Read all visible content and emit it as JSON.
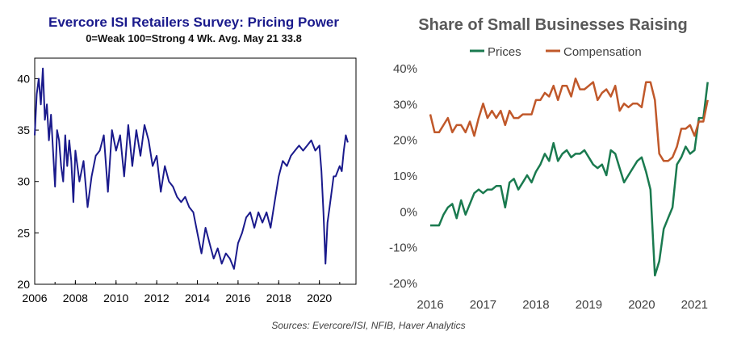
{
  "sources": "Sources: Evercore/ISI, NFIB, Haver Analytics",
  "colors": {
    "retailers_line": "#1a1a8c",
    "prices": "#1a7a4f",
    "compensation": "#c0582a"
  },
  "chart_data": [
    {
      "type": "line",
      "title": "Evercore ISI Retailers Survey: Pricing Power",
      "subtitle": "0=Weak  100=Strong  4 Wk. Avg.  May 21 33.8",
      "xlabel": "",
      "ylabel": "",
      "xlim": [
        2006,
        2021.8
      ],
      "ylim": [
        20,
        42
      ],
      "xticks": [
        "2006",
        "2008",
        "2010",
        "2012",
        "2014",
        "2016",
        "2018",
        "2020"
      ],
      "yticks": [
        "20",
        "25",
        "30",
        "35",
        "40"
      ],
      "grid": false,
      "series": [
        {
          "name": "",
          "x": [
            2006.0,
            2006.1,
            2006.2,
            2006.3,
            2006.4,
            2006.5,
            2006.6,
            2006.7,
            2006.8,
            2006.9,
            2007.0,
            2007.1,
            2007.2,
            2007.3,
            2007.4,
            2007.5,
            2007.6,
            2007.7,
            2007.8,
            2007.9,
            2008.0,
            2008.2,
            2008.4,
            2008.6,
            2008.8,
            2009.0,
            2009.2,
            2009.4,
            2009.6,
            2009.8,
            2010.0,
            2010.2,
            2010.4,
            2010.6,
            2010.8,
            2011.0,
            2011.2,
            2011.4,
            2011.6,
            2011.8,
            2012.0,
            2012.2,
            2012.4,
            2012.6,
            2012.8,
            2013.0,
            2013.2,
            2013.4,
            2013.6,
            2013.8,
            2014.0,
            2014.2,
            2014.4,
            2014.6,
            2014.8,
            2015.0,
            2015.2,
            2015.4,
            2015.6,
            2015.8,
            2016.0,
            2016.2,
            2016.4,
            2016.6,
            2016.8,
            2017.0,
            2017.2,
            2017.4,
            2017.6,
            2017.8,
            2018.0,
            2018.2,
            2018.4,
            2018.6,
            2018.8,
            2019.0,
            2019.2,
            2019.4,
            2019.6,
            2019.8,
            2020.0,
            2020.1,
            2020.2,
            2020.3,
            2020.4,
            2020.5,
            2020.6,
            2020.7,
            2020.8,
            2020.9,
            2021.0,
            2021.1,
            2021.2,
            2021.3,
            2021.4
          ],
          "y": [
            34.5,
            38.5,
            40.0,
            37.5,
            41.0,
            36.0,
            37.5,
            34.0,
            36.5,
            33.0,
            29.5,
            35.0,
            34.0,
            31.5,
            30.0,
            34.5,
            31.5,
            34.0,
            32.0,
            28.0,
            33.0,
            30.0,
            32.0,
            27.5,
            30.5,
            32.5,
            33.0,
            34.5,
            29.0,
            35.0,
            33.0,
            34.5,
            30.5,
            35.5,
            31.5,
            35.0,
            32.5,
            35.5,
            34.0,
            31.5,
            32.5,
            29.0,
            31.5,
            30.0,
            29.5,
            28.5,
            28.0,
            28.5,
            27.5,
            27.0,
            25.0,
            23.0,
            25.5,
            24.0,
            22.5,
            23.5,
            22.0,
            23.0,
            22.5,
            21.5,
            24.0,
            25.0,
            26.5,
            27.0,
            25.5,
            27.0,
            26.0,
            27.0,
            25.5,
            28.0,
            30.5,
            32.0,
            31.5,
            32.5,
            33.0,
            33.5,
            33.0,
            33.5,
            34.0,
            33.0,
            33.5,
            31.0,
            27.0,
            22.0,
            26.0,
            27.5,
            29.0,
            30.5,
            30.5,
            31.0,
            31.5,
            31.0,
            33.0,
            34.5,
            33.8
          ]
        }
      ]
    },
    {
      "type": "line",
      "title": "Share of Small Businesses Raising",
      "xlabel": "",
      "ylabel": "",
      "xlim": [
        2016,
        2021.3
      ],
      "ylim": [
        -20,
        40
      ],
      "xticks": [
        "2016",
        "2017",
        "2018",
        "2019",
        "2020",
        "2021"
      ],
      "yticks": [
        "-20%",
        "-10%",
        "0%",
        "10%",
        "20%",
        "30%",
        "40%"
      ],
      "legend": "top",
      "grid": false,
      "series": [
        {
          "name": "Prices",
          "x": [
            2016.0,
            2016.083,
            2016.167,
            2016.25,
            2016.333,
            2016.417,
            2016.5,
            2016.583,
            2016.667,
            2016.75,
            2016.833,
            2016.917,
            2017.0,
            2017.083,
            2017.167,
            2017.25,
            2017.333,
            2017.417,
            2017.5,
            2017.583,
            2017.667,
            2017.75,
            2017.833,
            2017.917,
            2018.0,
            2018.083,
            2018.167,
            2018.25,
            2018.333,
            2018.417,
            2018.5,
            2018.583,
            2018.667,
            2018.75,
            2018.833,
            2018.917,
            2019.0,
            2019.083,
            2019.167,
            2019.25,
            2019.333,
            2019.417,
            2019.5,
            2019.583,
            2019.667,
            2019.75,
            2019.833,
            2019.917,
            2020.0,
            2020.083,
            2020.167,
            2020.25,
            2020.333,
            2020.417,
            2020.5,
            2020.583,
            2020.667,
            2020.75,
            2020.833,
            2020.917,
            2021.0,
            2021.083,
            2021.167,
            2021.25
          ],
          "values": [
            -4,
            -4,
            -4,
            -1,
            1,
            2,
            -2,
            3,
            -1,
            2,
            5,
            6,
            5,
            6,
            6,
            7,
            7,
            1,
            8,
            9,
            6,
            8,
            10,
            8,
            11,
            13,
            16,
            14,
            19,
            14,
            16,
            17,
            15,
            16,
            16,
            17,
            15,
            13,
            12,
            13,
            10,
            17,
            16,
            12,
            8,
            10,
            12,
            14,
            15,
            11,
            6,
            -18,
            -14,
            -5,
            -2,
            1,
            13,
            15,
            18,
            16,
            17,
            26,
            26,
            36
          ]
        },
        {
          "name": "Compensation",
          "x": [
            2016.0,
            2016.083,
            2016.167,
            2016.25,
            2016.333,
            2016.417,
            2016.5,
            2016.583,
            2016.667,
            2016.75,
            2016.833,
            2016.917,
            2017.0,
            2017.083,
            2017.167,
            2017.25,
            2017.333,
            2017.417,
            2017.5,
            2017.583,
            2017.667,
            2017.75,
            2017.833,
            2017.917,
            2018.0,
            2018.083,
            2018.167,
            2018.25,
            2018.333,
            2018.417,
            2018.5,
            2018.583,
            2018.667,
            2018.75,
            2018.833,
            2018.917,
            2019.0,
            2019.083,
            2019.167,
            2019.25,
            2019.333,
            2019.417,
            2019.5,
            2019.583,
            2019.667,
            2019.75,
            2019.833,
            2019.917,
            2020.0,
            2020.083,
            2020.167,
            2020.25,
            2020.333,
            2020.417,
            2020.5,
            2020.583,
            2020.667,
            2020.75,
            2020.833,
            2020.917,
            2021.0,
            2021.083,
            2021.167,
            2021.25
          ],
          "values": [
            27,
            22,
            22,
            24,
            26,
            22,
            24,
            24,
            22,
            25,
            21,
            26,
            30,
            26,
            28,
            26,
            28,
            24,
            28,
            26,
            26,
            27,
            27,
            27,
            31,
            31,
            33,
            32,
            35,
            31,
            35,
            35,
            32,
            37,
            34,
            34,
            35,
            36,
            31,
            33,
            34,
            32,
            35,
            28,
            30,
            29,
            30,
            30,
            29,
            36,
            36,
            31,
            16,
            14,
            14,
            15,
            18,
            23,
            23,
            24,
            21,
            25,
            25,
            31
          ]
        }
      ]
    }
  ]
}
